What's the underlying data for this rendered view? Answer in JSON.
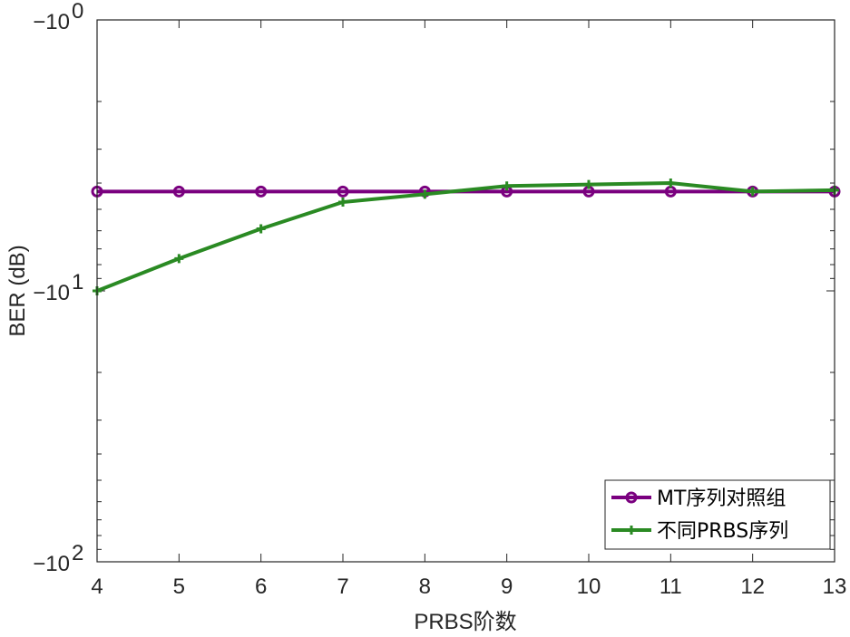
{
  "chart_data": {
    "type": "line",
    "xlabel": "PRBS阶数",
    "ylabel": "BER (dB)",
    "x": [
      4,
      5,
      6,
      7,
      8,
      9,
      10,
      11,
      12,
      13
    ],
    "xlim": [
      4,
      13
    ],
    "yscale": "negative-log",
    "ylim": [
      -1,
      -100
    ],
    "yticks": [
      {
        "value": -1,
        "base": "−10",
        "exp": "0"
      },
      {
        "value": -10,
        "base": "−10",
        "exp": "1"
      },
      {
        "value": -100,
        "base": "−10",
        "exp": "2"
      }
    ],
    "grid": false,
    "legend_position": "bottom-right",
    "series": [
      {
        "name": "MT序列对照组",
        "color": "#7a007f",
        "marker": "circle",
        "values": [
          -4.3,
          -4.3,
          -4.3,
          -4.3,
          -4.3,
          -4.3,
          -4.3,
          -4.3,
          -4.3,
          -4.3
        ]
      },
      {
        "name": "不同PRBS序列",
        "color": "#2a8a23",
        "marker": "plus",
        "values": [
          -10.0,
          -7.6,
          -5.9,
          -4.7,
          -4.4,
          -4.1,
          -4.05,
          -4.0,
          -4.3,
          -4.25
        ]
      }
    ]
  }
}
